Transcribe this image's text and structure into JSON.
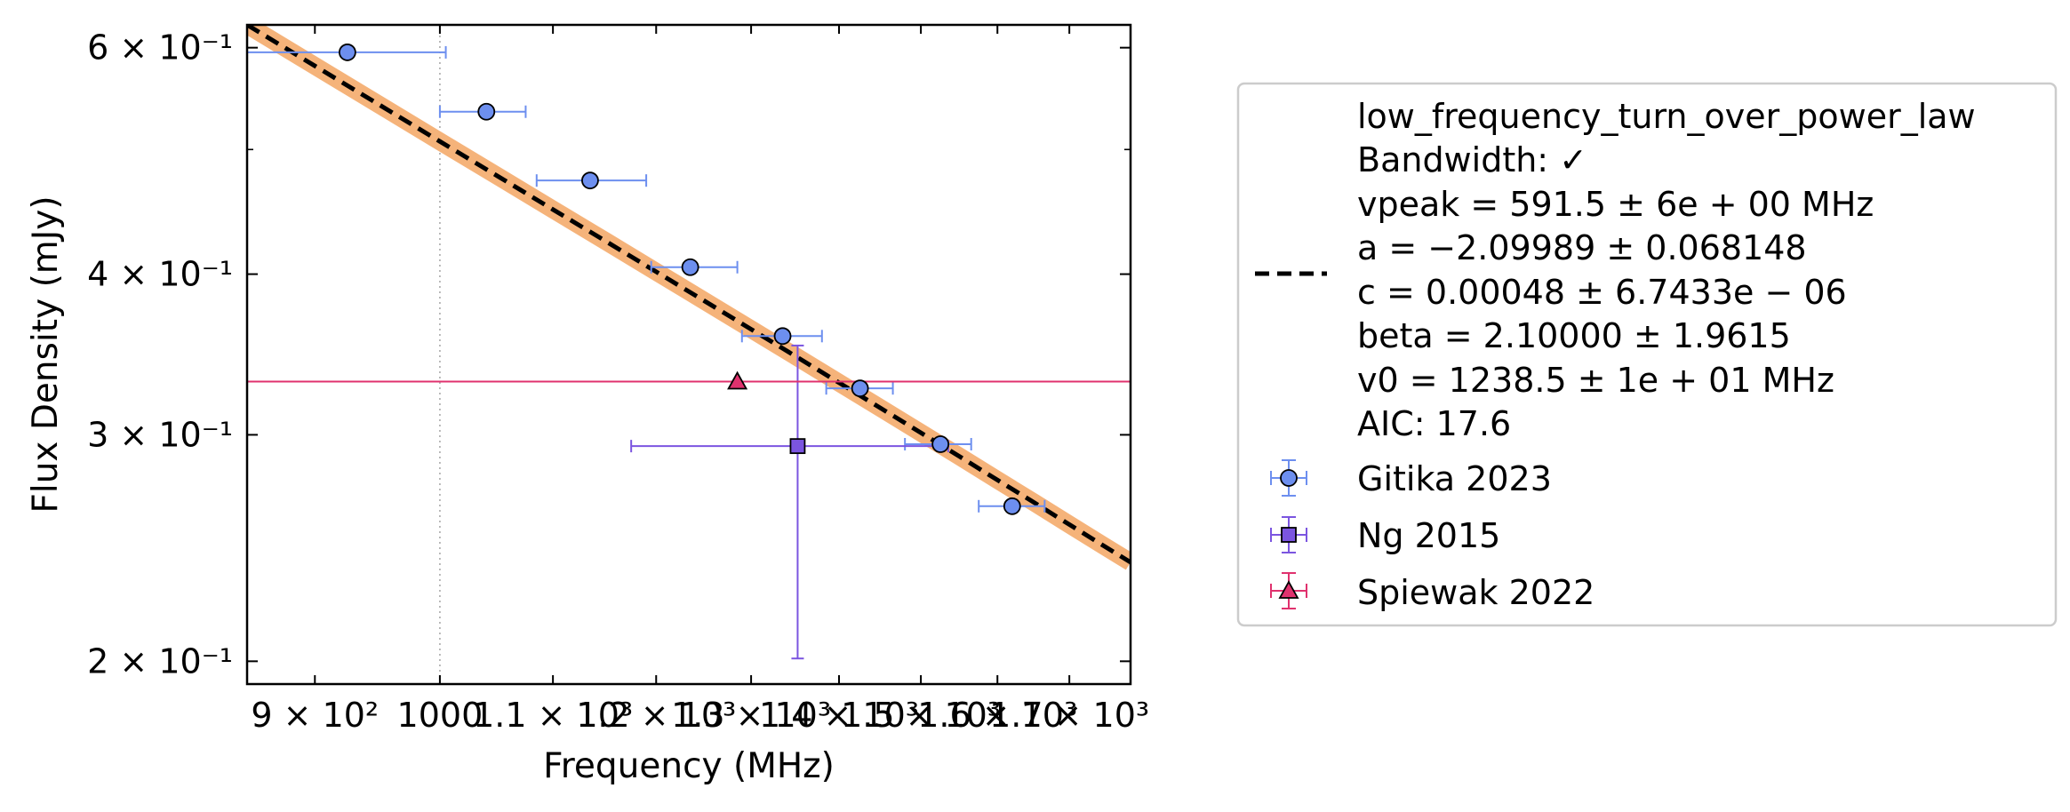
{
  "chart_data": {
    "type": "scatter",
    "xlabel": "Frequency (MHz)",
    "ylabel": "Flux Density (mJy)",
    "xscale": "log",
    "yscale": "log",
    "xlim": [
      850,
      1790
    ],
    "ylim": [
      0.192,
      0.625
    ],
    "grid": false,
    "reference_line_x": 1000,
    "x_ticks": [
      {
        "value": 900,
        "label": "9 × 10²"
      },
      {
        "value": 1000,
        "label": "1000"
      },
      {
        "value": 1100,
        "label": "1.1 × 10³"
      },
      {
        "value": 1200,
        "label": "1.2 × 10³"
      },
      {
        "value": 1300,
        "label": "1.3 × 10³"
      },
      {
        "value": 1400,
        "label": "1.4 × 10³"
      },
      {
        "value": 1500,
        "label": "1.5 × 10³"
      },
      {
        "value": 1600,
        "label": "1.6 × 10³"
      },
      {
        "value": 1700,
        "label": "1.7 × 10³"
      }
    ],
    "y_ticks": [
      {
        "value": 0.2,
        "label": "2 × 10⁻¹"
      },
      {
        "value": 0.3,
        "label": "3 × 10⁻¹"
      },
      {
        "value": 0.4,
        "label": "4 × 10⁻¹"
      },
      {
        "value": 0.6,
        "label": "6 × 10⁻¹"
      }
    ],
    "y_minor_ticks": [
      0.5
    ],
    "fit": {
      "name": "low_frequency_turn_over_power_law",
      "color": "#000000",
      "band_color": "#f5b37a",
      "x": [
        850,
        900,
        950,
        1000,
        1050,
        1100,
        1150,
        1200,
        1250,
        1300,
        1350,
        1400,
        1450,
        1500,
        1550,
        1600,
        1650,
        1700,
        1750,
        1790
      ],
      "y": [
        0.625,
        0.5807,
        0.5418,
        0.5073,
        0.4767,
        0.4491,
        0.4243,
        0.4017,
        0.3812,
        0.3624,
        0.3452,
        0.3293,
        0.3147,
        0.3011,
        0.2885,
        0.2767,
        0.2658,
        0.2555,
        0.2459,
        0.2388
      ]
    },
    "series": [
      {
        "name": "Gitika 2023",
        "marker": "circle",
        "color": "#6d8fef",
        "err_color": "#6d8fef",
        "points": [
          {
            "x": 925,
            "y": 0.595,
            "xerr": [
              850,
              1005
            ]
          },
          {
            "x": 1040,
            "y": 0.535,
            "xerr": [
              1000,
              1075
            ]
          },
          {
            "x": 1135,
            "y": 0.473,
            "xerr": [
              1085,
              1190
            ]
          },
          {
            "x": 1235,
            "y": 0.405,
            "xerr": [
              1195,
              1285
            ]
          },
          {
            "x": 1335,
            "y": 0.358,
            "xerr": [
              1290,
              1380
            ]
          },
          {
            "x": 1425,
            "y": 0.326,
            "xerr": [
              1385,
              1465
            ]
          },
          {
            "x": 1525,
            "y": 0.295,
            "xerr": [
              1480,
              1565
            ]
          },
          {
            "x": 1620,
            "y": 0.264,
            "xerr": [
              1575,
              1665
            ]
          }
        ]
      },
      {
        "name": "Ng 2015",
        "marker": "square",
        "color": "#7b55e0",
        "err_color": "#7b55e0",
        "points": [
          {
            "x": 1352,
            "y": 0.294,
            "xerr": [
              1175,
              1535
            ],
            "yerr": [
              0.201,
              0.352
            ]
          }
        ]
      },
      {
        "name": "Spiewak 2022",
        "marker": "triangle",
        "color": "#e0326e",
        "err_color": "#e0326e",
        "points": [
          {
            "x": 1285,
            "y": 0.33,
            "xerr": [
              850,
              1790
            ]
          }
        ]
      }
    ],
    "legend": {
      "placement": "outside right",
      "fit_lines": [
        "low_frequency_turn_over_power_law",
        "Bandwidth: ✓",
        "vpeak = 591.5 ± 6e + 00 MHz",
        "a = −2.09989 ± 0.068148",
        "c = 0.00048 ± 6.7433e − 06",
        "beta = 2.10000 ± 1.9615",
        "v0 = 1238.5 ± 1e + 01 MHz",
        "AIC: 17.6"
      ],
      "entries": [
        "Gitika 2023",
        "Ng 2015",
        "Spiewak 2022"
      ]
    }
  }
}
